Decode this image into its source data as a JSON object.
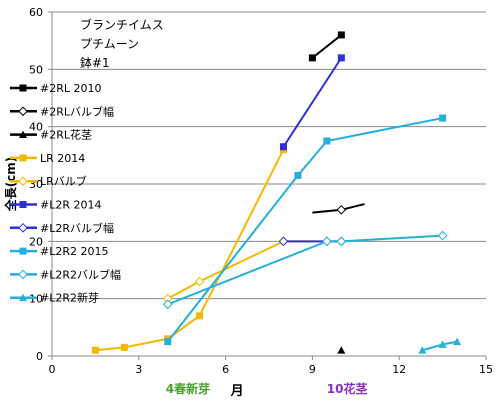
{
  "chart_data": {
    "type": "scatter",
    "title_lines": [
      "ブランチイムス",
      "プチムーン",
      "鉢#1"
    ],
    "xlabel": "月",
    "ylabel": "全長(cm)",
    "xlim": [
      0,
      15
    ],
    "ylim": [
      0,
      60
    ],
    "xticks": [
      0,
      3,
      6,
      9,
      12,
      15
    ],
    "yticks": [
      0,
      10,
      20,
      30,
      40,
      50,
      60
    ],
    "grid": "horizontal",
    "legend_position": "left",
    "annotations": [
      {
        "text": "4春新芽",
        "x": 4.7,
        "color": "#4aa02c"
      },
      {
        "text": "10花茎",
        "x": 10.2,
        "color": "#8b2fc9"
      }
    ],
    "series": [
      {
        "name": "#2RL 2010",
        "color": "#000000",
        "marker": "square",
        "points": [
          [
            9.0,
            52
          ],
          [
            10.0,
            56
          ]
        ]
      },
      {
        "name": "#2RLバルブ幅",
        "color": "#000000",
        "marker": "diamond-open",
        "points": [
          [
            9.0,
            25
          ],
          [
            10.0,
            25.5
          ],
          [
            10.8,
            26.5
          ]
        ]
      },
      {
        "name": "#2RL花茎",
        "color": "#000000",
        "marker": "triangle",
        "points": [
          [
            10.0,
            1
          ]
        ]
      },
      {
        "name": "LR 2014",
        "color": "#f5b800",
        "marker": "square",
        "points": [
          [
            1.5,
            1
          ],
          [
            2.5,
            1.5
          ],
          [
            4.0,
            3
          ],
          [
            5.1,
            7
          ],
          [
            8.0,
            36
          ]
        ]
      },
      {
        "name": "LRバルブ",
        "color": "#f5b800",
        "marker": "diamond-open",
        "points": [
          [
            4.0,
            10
          ],
          [
            5.1,
            13
          ],
          [
            8.0,
            20
          ],
          [
            9.5,
            20
          ],
          [
            10.0,
            20
          ]
        ]
      },
      {
        "name": "#L2R 2014",
        "color": "#2f2fd8",
        "marker": "square",
        "points": [
          [
            8.0,
            36.5
          ],
          [
            10.0,
            52
          ]
        ]
      },
      {
        "name": "#L2Rバルブ幅",
        "color": "#2f2fd8",
        "marker": "diamond-open",
        "points": [
          [
            8.0,
            20
          ],
          [
            9.5,
            20
          ],
          [
            10.0,
            20
          ]
        ]
      },
      {
        "name": "#L2R2 2015",
        "color": "#22b0dc",
        "marker": "square",
        "points": [
          [
            4.0,
            2.5
          ],
          [
            8.5,
            31.5
          ],
          [
            9.5,
            37.5
          ],
          [
            13.5,
            41.5
          ]
        ]
      },
      {
        "name": "#L2R2バルブ幅",
        "color": "#22b0dc",
        "marker": "diamond-open",
        "points": [
          [
            4.0,
            9
          ],
          [
            9.5,
            20
          ],
          [
            10.0,
            20
          ],
          [
            13.5,
            21
          ]
        ]
      },
      {
        "name": "#L2R2新芽",
        "color": "#22b0dc",
        "marker": "triangle",
        "points": [
          [
            12.8,
            1
          ],
          [
            13.5,
            2
          ],
          [
            14.0,
            2.5
          ]
        ]
      }
    ]
  }
}
